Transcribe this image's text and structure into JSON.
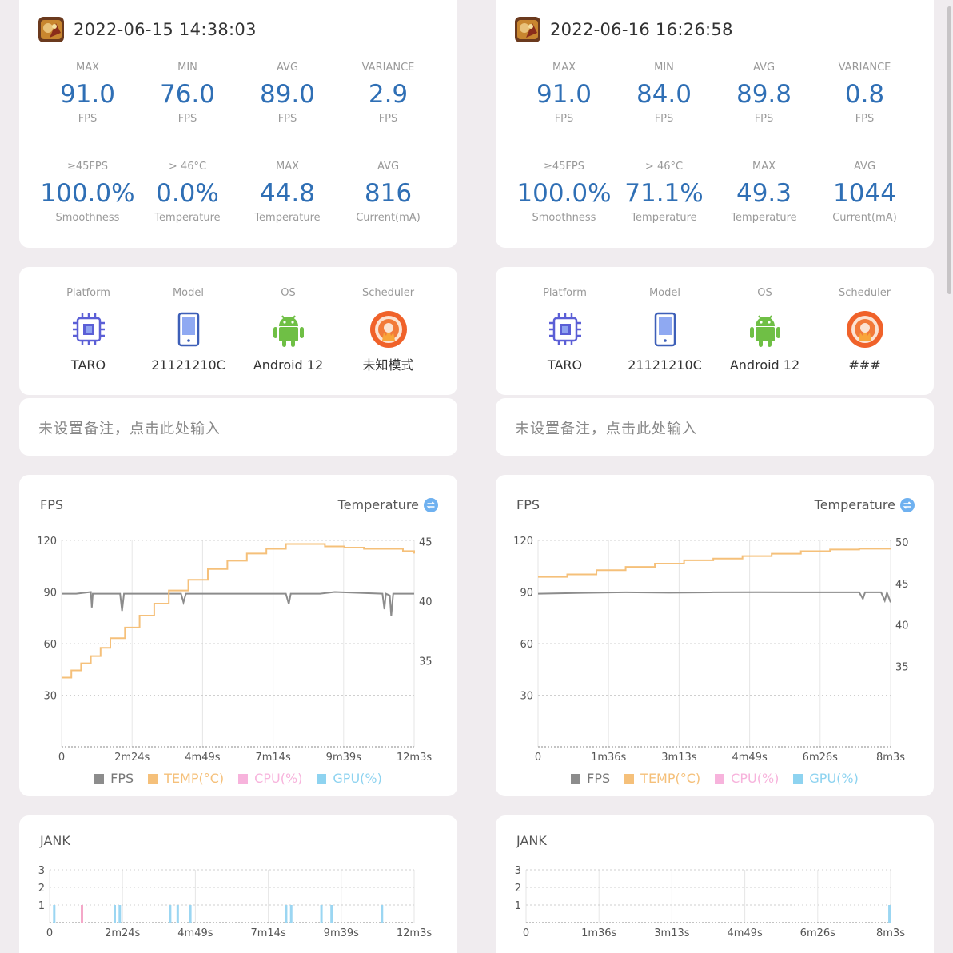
{
  "colors": {
    "accent_blue": "#2f6fb5",
    "fps_gray": "#8c8c8c",
    "temp_orange": "#f5c07a",
    "cpu_pink": "#f7b3dc",
    "gpu_blue": "#8ed3f0",
    "jank_blue": "#9bd6f2",
    "big_jank_pink": "#f4a8c8"
  },
  "legend": {
    "fps": "FPS",
    "temp": "TEMP(°C)",
    "cpu": "CPU(%)",
    "gpu": "GPU(%)"
  },
  "device_labels": {
    "platform": "Platform",
    "model": "Model",
    "os": "OS",
    "scheduler": "Scheduler"
  },
  "icons": {
    "platform": "chip-icon",
    "model": "phone-icon",
    "os": "android-icon",
    "scheduler": "scheduler-flame-icon",
    "swap": "swap-icon",
    "game": "game-thumbnail-icon"
  },
  "sessions": [
    {
      "timestamp": "2022-06-15 14:38:03",
      "fps_stats": [
        {
          "label": "MAX",
          "value": "91.0",
          "unit": "FPS"
        },
        {
          "label": "MIN",
          "value": "76.0",
          "unit": "FPS"
        },
        {
          "label": "AVG",
          "value": "89.0",
          "unit": "FPS"
        },
        {
          "label": "VARIANCE",
          "value": "2.9",
          "unit": "FPS"
        }
      ],
      "other_stats": [
        {
          "label": "≥45FPS",
          "value": "100.0%",
          "unit": "Smoothness"
        },
        {
          "label": "> 46°C",
          "value": "0.0%",
          "unit": "Temperature"
        },
        {
          "label": "MAX",
          "value": "44.8",
          "unit": "Temperature"
        },
        {
          "label": "AVG",
          "value": "816",
          "unit": "Current(mA)"
        }
      ],
      "device": {
        "platform": "TARO",
        "model": "21121210C",
        "os": "Android 12",
        "scheduler": "未知模式"
      },
      "note_placeholder": "未设置备注，点击此处输入",
      "fps_chart_title": "FPS",
      "temp_link": "Temperature",
      "jank_title": "JANK"
    },
    {
      "timestamp": "2022-06-16 16:26:58",
      "fps_stats": [
        {
          "label": "MAX",
          "value": "91.0",
          "unit": "FPS"
        },
        {
          "label": "MIN",
          "value": "84.0",
          "unit": "FPS"
        },
        {
          "label": "AVG",
          "value": "89.8",
          "unit": "FPS"
        },
        {
          "label": "VARIANCE",
          "value": "0.8",
          "unit": "FPS"
        }
      ],
      "other_stats": [
        {
          "label": "≥45FPS",
          "value": "100.0%",
          "unit": "Smoothness"
        },
        {
          "label": "> 46°C",
          "value": "71.1%",
          "unit": "Temperature"
        },
        {
          "label": "MAX",
          "value": "49.3",
          "unit": "Temperature"
        },
        {
          "label": "AVG",
          "value": "1044",
          "unit": "Current(mA)"
        }
      ],
      "device": {
        "platform": "TARO",
        "model": "21121210C",
        "os": "Android 12",
        "scheduler": "###"
      },
      "note_placeholder": "未设置备注，点击此处输入",
      "fps_chart_title": "FPS",
      "temp_link": "Temperature",
      "jank_title": "JANK"
    }
  ],
  "chart_data": [
    {
      "type": "line",
      "x_unit": "seconds",
      "x_ticks": [
        "0",
        "2m24s",
        "4m49s",
        "7m14s",
        "9m39s",
        "12m3s"
      ],
      "xlim": [
        0,
        723
      ],
      "ylim": [
        0,
        120
      ],
      "y_ticks": [
        30,
        60,
        90,
        120
      ],
      "y2_ticks": [
        35,
        40,
        45
      ],
      "y2lim": [
        27.8,
        45.1
      ],
      "grid": true,
      "legend_position": "bottom",
      "series": [
        {
          "name": "FPS",
          "axis": "left",
          "x": [
            0,
            30,
            60,
            62,
            64,
            120,
            124,
            128,
            200,
            245,
            250,
            255,
            370,
            460,
            466,
            470,
            530,
            560,
            658,
            662,
            665,
            673,
            676,
            680,
            723
          ],
          "y": [
            89,
            89,
            90,
            81,
            89,
            89,
            79,
            89,
            89,
            89,
            84,
            89,
            89,
            89,
            83,
            89,
            89,
            90,
            89,
            80,
            89,
            88,
            76,
            89,
            89
          ]
        },
        {
          "name": "TEMP(°C)",
          "axis": "right",
          "x": [
            0,
            20,
            40,
            60,
            80,
            100,
            130,
            160,
            190,
            220,
            260,
            300,
            340,
            380,
            420,
            460,
            500,
            540,
            580,
            620,
            660,
            700,
            723
          ],
          "y": [
            33.6,
            34.2,
            34.8,
            35.4,
            36.1,
            36.9,
            37.8,
            38.8,
            39.8,
            40.9,
            41.8,
            42.7,
            43.4,
            44.0,
            44.4,
            44.8,
            44.8,
            44.6,
            44.5,
            44.4,
            44.4,
            44.2,
            44.0
          ]
        },
        {
          "name": "CPU(%)",
          "axis": "left",
          "x": [],
          "y": []
        },
        {
          "name": "GPU(%)",
          "axis": "left",
          "x": [],
          "y": []
        }
      ]
    },
    {
      "type": "line",
      "x_unit": "seconds",
      "x_ticks": [
        "0",
        "1m36s",
        "3m13s",
        "4m49s",
        "6m26s",
        "8m3s"
      ],
      "xlim": [
        0,
        483
      ],
      "ylim": [
        0,
        120
      ],
      "y_ticks": [
        30,
        60,
        90,
        120
      ],
      "y2_ticks": [
        35,
        40,
        45,
        50
      ],
      "y2lim": [
        25.3,
        50.2
      ],
      "grid": true,
      "legend_position": "bottom",
      "series": [
        {
          "name": "FPS",
          "axis": "left",
          "x": [
            0,
            60,
            120,
            180,
            240,
            300,
            360,
            440,
            445,
            448,
            470,
            475,
            478,
            483
          ],
          "y": [
            89,
            89.5,
            89.8,
            89.6,
            89.8,
            89.9,
            89.8,
            89.8,
            86,
            89.8,
            89.8,
            85,
            89.6,
            84
          ]
        },
        {
          "name": "TEMP(°C)",
          "axis": "right",
          "x": [
            0,
            40,
            80,
            120,
            160,
            200,
            240,
            280,
            320,
            360,
            400,
            440,
            483
          ],
          "y": [
            45.8,
            46.1,
            46.6,
            47.0,
            47.4,
            47.8,
            48.0,
            48.3,
            48.6,
            48.9,
            49.1,
            49.2,
            49.3
          ]
        },
        {
          "name": "CPU(%)",
          "axis": "left",
          "x": [],
          "y": []
        },
        {
          "name": "GPU(%)",
          "axis": "left",
          "x": [],
          "y": []
        }
      ]
    },
    {
      "type": "bar",
      "title": "JANK",
      "x_ticks": [
        "0",
        "2m24s",
        "4m49s",
        "7m14s",
        "9m39s",
        "12m3s"
      ],
      "xlim": [
        0,
        723
      ],
      "y_ticks": [
        1,
        2,
        3
      ],
      "ylim": [
        0,
        3
      ],
      "series": [
        {
          "name": "JANK",
          "color_key": "jank_blue",
          "x": [
            10,
            130,
            140,
            240,
            255,
            280,
            470,
            480,
            540,
            560,
            660
          ],
          "y": [
            1,
            1,
            1,
            1,
            1,
            1,
            1,
            1,
            1,
            1,
            1
          ]
        },
        {
          "name": "BIG JANK",
          "color_key": "big_jank_pink",
          "x": [
            65
          ],
          "y": [
            1
          ]
        }
      ]
    },
    {
      "type": "bar",
      "title": "JANK",
      "x_ticks": [
        "0",
        "1m36s",
        "3m13s",
        "4m49s",
        "6m26s",
        "8m3s"
      ],
      "xlim": [
        0,
        483
      ],
      "y_ticks": [
        1,
        2,
        3
      ],
      "ylim": [
        0,
        3
      ],
      "series": [
        {
          "name": "JANK",
          "color_key": "jank_blue",
          "x": [
            482
          ],
          "y": [
            1
          ]
        },
        {
          "name": "BIG JANK",
          "color_key": "big_jank_pink",
          "x": [],
          "y": []
        }
      ]
    }
  ]
}
